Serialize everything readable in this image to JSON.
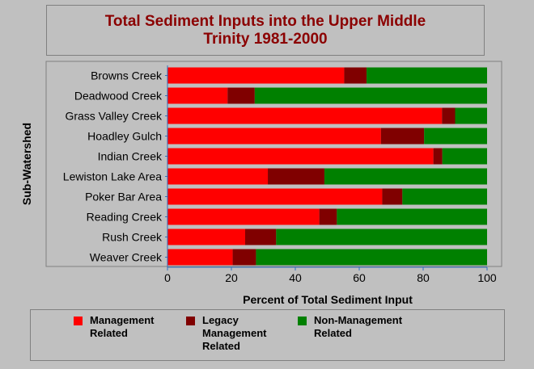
{
  "chart_data": {
    "type": "bar",
    "orientation": "horizontal",
    "stacked": true,
    "title": "Total Sediment Inputs into the Upper Middle Trinity 1981-2000",
    "title_lines": [
      "Total Sediment Inputs into the Upper Middle",
      "Trinity 1981-2000"
    ],
    "xlabel": "Percent of Total Sediment Input",
    "ylabel": "Sub-Watershed",
    "xlim": [
      0,
      100
    ],
    "xticks": [
      0,
      20,
      40,
      60,
      80,
      100
    ],
    "categories": [
      "Browns Creek",
      "Deadwood Creek",
      "Grass Valley Creek",
      "Hoadley Gulch",
      "Indian Creek",
      "Lewiston Lake Area",
      "Poker Bar Area",
      "Reading Creek",
      "Rush Creek",
      "Weaver Creek"
    ],
    "series": [
      {
        "name": "Management Related",
        "color": "#ff0000",
        "values": [
          55.3,
          18.8,
          85.9,
          66.8,
          83.2,
          31.4,
          67.2,
          47.5,
          24.3,
          20.4
        ]
      },
      {
        "name": "Legacy Management Related",
        "color": "#800000",
        "values": [
          7.0,
          8.5,
          4.1,
          13.5,
          2.8,
          17.7,
          6.3,
          5.5,
          9.7,
          7.3
        ]
      },
      {
        "name": "Non-Management Related",
        "color": "#008000",
        "values": [
          37.7,
          72.7,
          10.0,
          19.7,
          14.0,
          50.9,
          26.5,
          47.0,
          66.0,
          72.3
        ]
      }
    ],
    "grid": false,
    "legend_position": "bottom"
  },
  "legend": {
    "items": [
      {
        "label": "Management\nRelated",
        "color": "#ff0000"
      },
      {
        "label": "Legacy\nManagement\nRelated",
        "color": "#800000"
      },
      {
        "label": "Non-Management\nRelated",
        "color": "#008000"
      }
    ]
  }
}
